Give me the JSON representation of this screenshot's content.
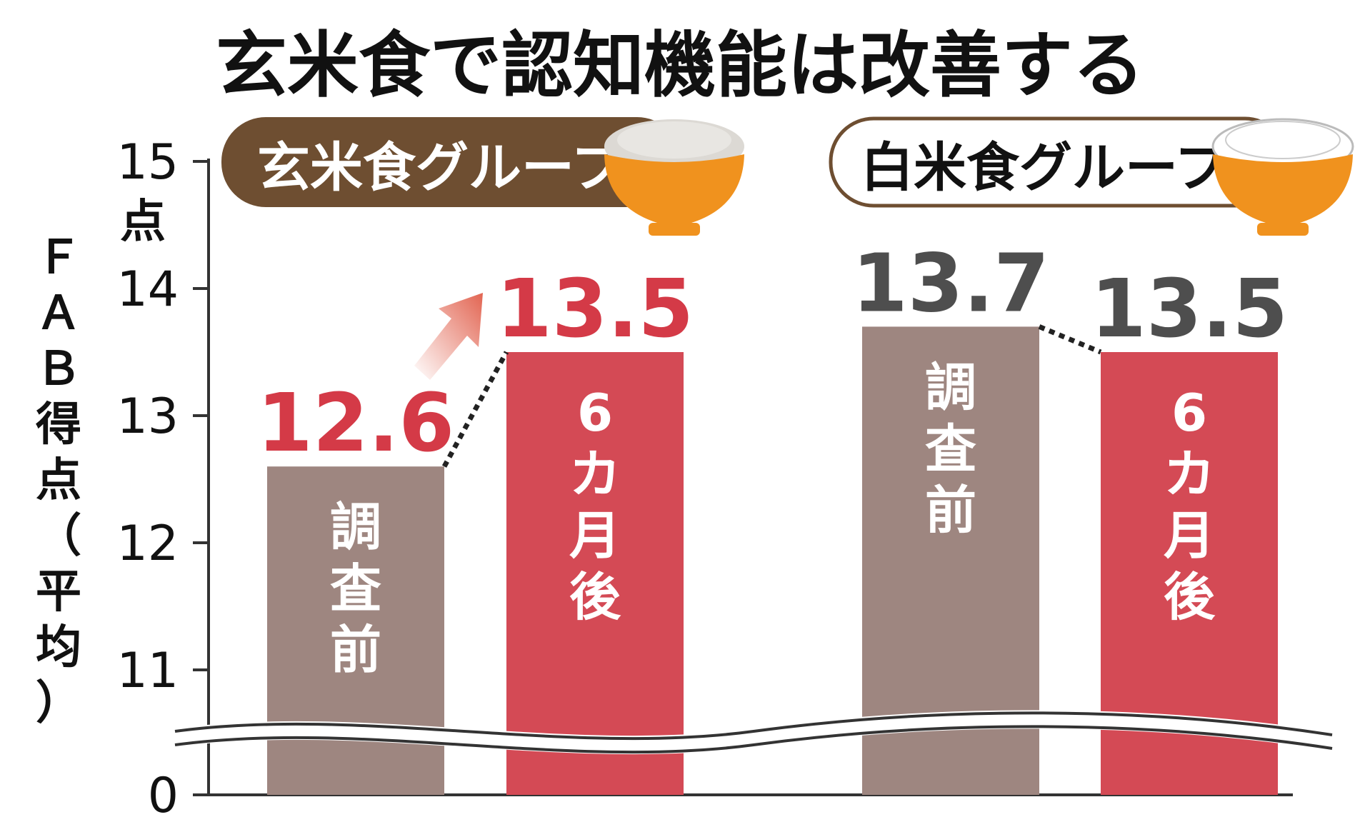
{
  "chart_data": {
    "type": "bar",
    "title": "玄米食で認知機能は改善する",
    "ylabel": "ＦＡＢ得点（平均）",
    "y_unit": "点",
    "ylim": [
      0,
      15
    ],
    "axis_break": [
      0,
      10.5
    ],
    "yticks": [
      "0",
      "11",
      "12",
      "13",
      "14",
      "15"
    ],
    "colors": {
      "before": "#9e8680",
      "after": "#d44a55",
      "value_after": "#d43a47",
      "value_before_white": "#4e4e4e",
      "group_brown": "#6e4e31",
      "arrow": "#e26552"
    },
    "groups": [
      {
        "name": "玄米食グループ",
        "bars": [
          {
            "label": "調査前",
            "value": 12.6,
            "value_label": "12.6"
          },
          {
            "label": "6カ月後",
            "value": 13.5,
            "value_label": "13.5"
          }
        ]
      },
      {
        "name": "白米食グループ",
        "bars": [
          {
            "label": "調査前",
            "value": 13.7,
            "value_label": "13.7"
          },
          {
            "label": "6カ月後",
            "value": 13.5,
            "value_label": "13.5"
          }
        ]
      }
    ]
  }
}
